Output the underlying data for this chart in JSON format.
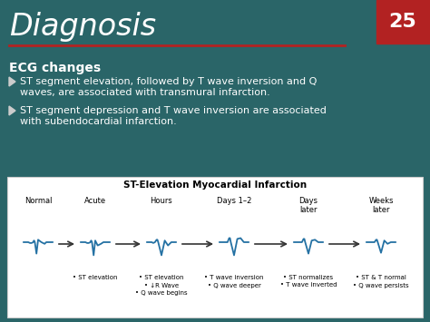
{
  "title": "Diagnosis",
  "slide_number": "25",
  "bg_color": "#2a6568",
  "title_color": "#ffffff",
  "red_color": "#b22222",
  "ecg_title": "ECG changes",
  "bullet1_line1": "ST segment elevation, followed by T wave inversion and Q",
  "bullet1_line2": "waves, are associated with transmural infarction.",
  "bullet2_line1": "ST segment depression and T wave inversion are associated",
  "bullet2_line2": "with subendocardial infarction.",
  "diagram_title": "ST-Elevation Myocardial Infarction",
  "stages": [
    "Normal",
    "Acute",
    "Hours",
    "Days 1–2",
    "Days\nlater",
    "Weeks\nlater"
  ],
  "stage_labels": [
    "",
    "• ST elevation",
    "• ST elevation\n• ↓R Wave\n• Q wave begins",
    "• T wave inversion\n• Q wave deeper",
    "• ST normalizes\n• T wave inverted",
    "• ST & T normal\n• Q wave persists"
  ],
  "ecg_color": "#2471a3",
  "arrow_color": "#333333",
  "white": "#ffffff",
  "black": "#111111",
  "diagram_border": "#cccccc"
}
